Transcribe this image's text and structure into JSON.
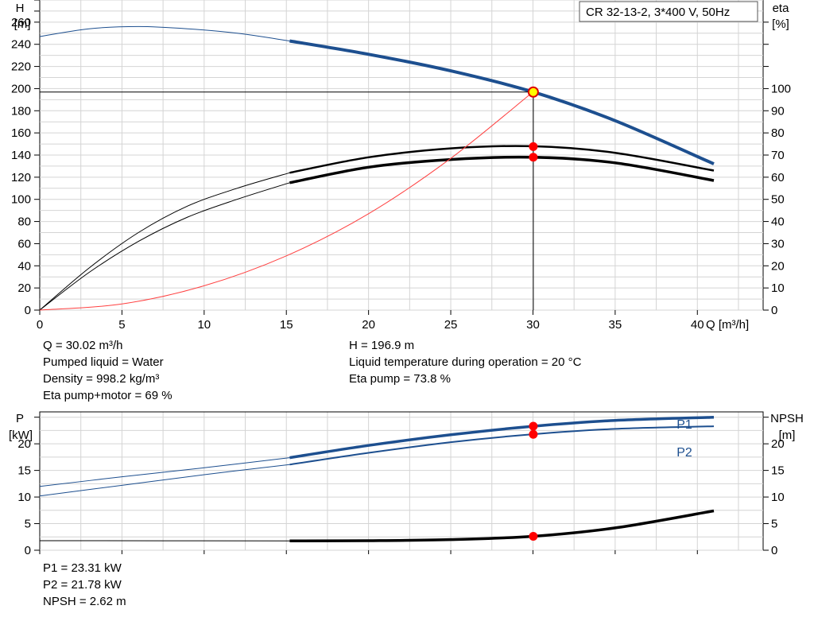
{
  "chart_data": [
    {
      "type": "line",
      "title": "CR 32-13-2, 3*400 V, 50Hz",
      "xlabel": "Q [m³/h]",
      "xlim": [
        0,
        44
      ],
      "xticks": [
        0,
        5,
        10,
        15,
        20,
        25,
        30,
        35,
        40
      ],
      "ylabel_left": [
        "H",
        "[m]"
      ],
      "ylim_left": [
        0,
        280
      ],
      "yticks_left": [
        0,
        20,
        40,
        60,
        80,
        100,
        120,
        140,
        160,
        180,
        200,
        220,
        240,
        260
      ],
      "ylabel_right": [
        "eta",
        "[%]"
      ],
      "ylim_right": [
        0,
        140
      ],
      "yticks_right": [
        0,
        10,
        20,
        30,
        40,
        50,
        60,
        70,
        80,
        90,
        100
      ],
      "grid": true,
      "series": [
        {
          "id": "head",
          "axis": "left",
          "color": "#1d4f8f",
          "x": [
            0,
            3,
            6,
            9,
            12,
            15.2,
            20,
            25,
            30,
            35,
            41
          ],
          "y": [
            247,
            254,
            256,
            254,
            250,
            243,
            231,
            216,
            197,
            171,
            132
          ],
          "op_from": 15.2
        },
        {
          "id": "eta-pump",
          "axis": "right",
          "x": [
            0,
            3,
            6,
            9,
            12,
            15.2,
            20,
            25,
            30,
            35,
            41
          ],
          "y": [
            0,
            19,
            35,
            47,
            55,
            62,
            69,
            73,
            74,
            71,
            63
          ],
          "op_from": 15.2
        },
        {
          "id": "eta-total",
          "axis": "right",
          "x": [
            0,
            3,
            6,
            9,
            12,
            15.2,
            20,
            25,
            30,
            35,
            41
          ],
          "y": [
            0,
            17,
            31,
            42,
            50,
            57.5,
            64.5,
            68,
            69,
            66.5,
            58.5
          ],
          "op_from": 15.2
        },
        {
          "id": "system-curve",
          "axis": "left",
          "color": "#ff4040",
          "x": [
            0,
            5,
            10,
            15,
            20,
            25,
            30
          ],
          "y": [
            0,
            5.5,
            22,
            49,
            87,
            137,
            197
          ]
        }
      ],
      "duty_point": {
        "q": 30.02,
        "h": 196.9,
        "eta_pump": 73.8,
        "eta_total": 69
      }
    },
    {
      "type": "line",
      "xlim": [
        0,
        44
      ],
      "ylabel_left": [
        "P",
        "[kW]"
      ],
      "ylim_left": [
        0,
        26
      ],
      "yticks_left": [
        0,
        5,
        10,
        15,
        20
      ],
      "ylabel_right": [
        "NPSH",
        "[m]"
      ],
      "ylim_right": [
        0,
        26
      ],
      "yticks_right": [
        0,
        5,
        10,
        15,
        20
      ],
      "grid": true,
      "series": [
        {
          "id": "p1",
          "name": "P1",
          "axis": "left",
          "color": "#1d4f8f",
          "x": [
            0,
            5,
            10,
            15.2,
            20,
            25,
            30,
            35,
            41
          ],
          "y": [
            12,
            13.8,
            15.5,
            17.4,
            19.7,
            21.7,
            23.3,
            24.4,
            25
          ],
          "op_from": 15.2
        },
        {
          "id": "p2",
          "name": "P2",
          "axis": "left",
          "color": "#1d4f8f",
          "x": [
            0,
            5,
            10,
            15.2,
            20,
            25,
            30,
            35,
            41
          ],
          "y": [
            10.2,
            12.2,
            14.2,
            16.1,
            18.3,
            20.3,
            21.8,
            22.8,
            23.3
          ],
          "op_from": 15.2
        },
        {
          "id": "npsh",
          "axis": "right",
          "color": "#000000",
          "x": [
            0,
            15.2,
            20,
            25,
            30,
            35,
            41
          ],
          "y": [
            1.8,
            1.75,
            1.8,
            2.0,
            2.62,
            4.2,
            7.4
          ],
          "op_from": 15.2
        }
      ],
      "duty_point": {
        "q": 30.02,
        "p1": 23.31,
        "p2": 21.78,
        "npsh": 2.62
      }
    }
  ],
  "info_top_left": [
    "Q = 30.02 m³/h",
    "Pumped liquid = Water",
    "Density = 998.2 kg/m³",
    "Eta pump+motor = 69 %"
  ],
  "info_top_right": [
    "H = 196.9 m",
    "Liquid temperature during operation = 20 °C",
    "Eta pump = 73.8 %"
  ],
  "info_bottom": [
    "P1 = 23.31 kW",
    "P2 = 21.78 kW",
    "NPSH = 2.62 m"
  ]
}
